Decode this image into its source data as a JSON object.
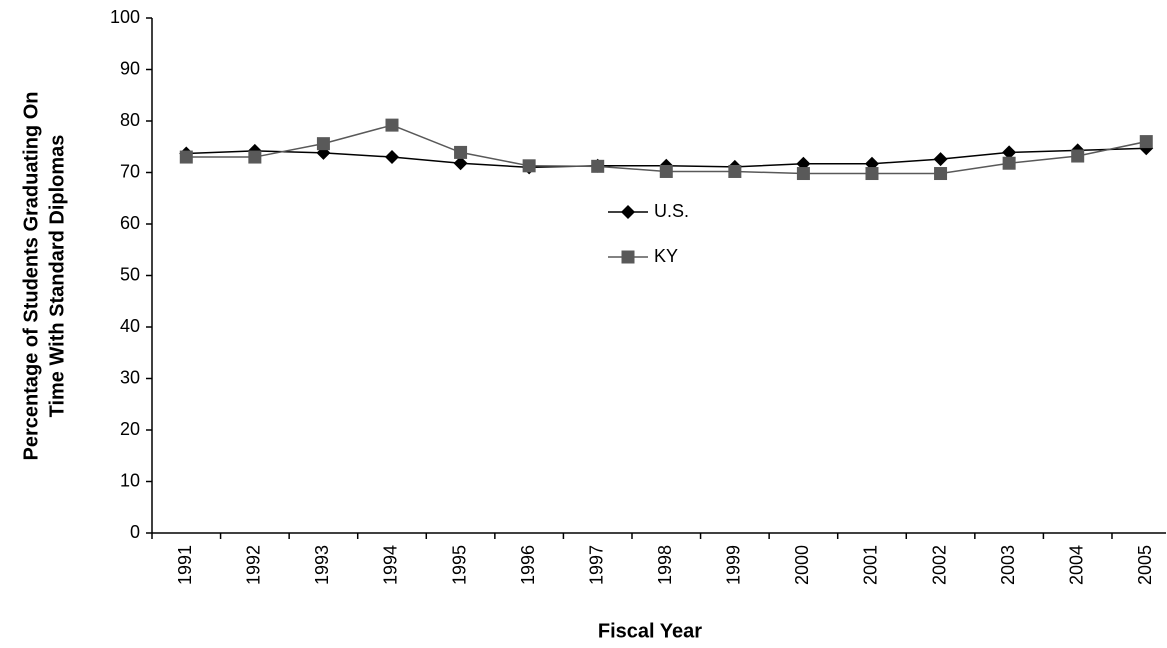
{
  "chart_data": {
    "type": "line",
    "xlabel": "Fiscal Year",
    "ylabel": [
      "Percentage of Students Graduating On",
      "Time With Standard Diplomas"
    ],
    "categories": [
      "1991",
      "1992",
      "1993",
      "1994",
      "1995",
      "1996",
      "1997",
      "1998",
      "1999",
      "2000",
      "2001",
      "2002",
      "2003",
      "2004",
      "2005"
    ],
    "series": [
      {
        "name": "U.S.",
        "color": "#000000",
        "marker": "diamond",
        "values": [
          73.7,
          74.2,
          73.8,
          73.0,
          71.8,
          71.0,
          71.3,
          71.3,
          71.1,
          71.7,
          71.7,
          72.6,
          73.9,
          74.3,
          74.7
        ]
      },
      {
        "name": "KY",
        "color": "#595959",
        "marker": "square",
        "values": [
          73.0,
          73.0,
          75.6,
          79.2,
          73.9,
          71.3,
          71.2,
          70.2,
          70.2,
          69.8,
          69.8,
          69.8,
          71.8,
          73.2,
          76.0
        ]
      }
    ],
    "ylim": [
      0,
      100
    ],
    "yticks": [
      0,
      10,
      20,
      30,
      40,
      50,
      60,
      70,
      80,
      90,
      100
    ],
    "grid": false,
    "legend": "center"
  }
}
